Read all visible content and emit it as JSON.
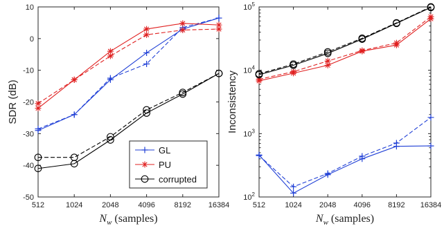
{
  "chart_data": [
    {
      "type": "line",
      "title": "",
      "xlabel_symbol": "N",
      "xlabel_sub": "w",
      "xlabel_rest": " (samples)",
      "ylabel": "SDR (dB)",
      "xscale": "log2",
      "xlim": [
        512,
        16384
      ],
      "ylim": [
        -50,
        10
      ],
      "x_ticks": [
        512,
        1024,
        2048,
        4096,
        8192,
        16384
      ],
      "y_ticks": [
        -50,
        -40,
        -30,
        -20,
        -10,
        0,
        10
      ],
      "grid": false,
      "legend": {
        "placement": "bottom-right",
        "entries": [
          {
            "label": "GL",
            "color": "#1f3fd6",
            "marker": "plus"
          },
          {
            "label": "PU",
            "color": "#e02020",
            "marker": "star"
          },
          {
            "label": "corrupted",
            "color": "#000000",
            "marker": "circle"
          }
        ]
      },
      "x": [
        512,
        1024,
        2048,
        4096,
        8192,
        16384
      ],
      "series": [
        {
          "name": "GL",
          "style": "solid",
          "color": "#1f3fd6",
          "marker": "plus",
          "values": [
            -29,
            -24,
            -13,
            -4.5,
            3,
            6.5
          ]
        },
        {
          "name": "GL",
          "style": "dashed",
          "color": "#1f3fd6",
          "marker": "plus",
          "values": [
            -28.5,
            -24,
            -12.5,
            -8,
            3.5,
            6.5
          ]
        },
        {
          "name": "PU",
          "style": "solid",
          "color": "#e02020",
          "marker": "star",
          "values": [
            -22,
            -13,
            -4,
            3,
            4.8,
            4.3
          ]
        },
        {
          "name": "PU",
          "style": "dashed",
          "color": "#e02020",
          "marker": "star",
          "values": [
            -20.5,
            -13,
            -5.5,
            1.2,
            2.7,
            3
          ]
        },
        {
          "name": "corrupted",
          "style": "solid",
          "color": "#000000",
          "marker": "circle",
          "values": [
            -41,
            -39.5,
            -32,
            -23.5,
            -17.5,
            -11
          ]
        },
        {
          "name": "corrupted",
          "style": "dashed",
          "color": "#000000",
          "marker": "circle",
          "values": [
            -37.5,
            -37.5,
            -31,
            -22.5,
            -17,
            -11
          ]
        }
      ]
    },
    {
      "type": "line",
      "title": "",
      "xlabel_symbol": "N",
      "xlabel_sub": "w",
      "xlabel_rest": " (samples)",
      "ylabel": "Inconsistency",
      "xscale": "log2",
      "yscale": "log",
      "xlim": [
        512,
        16384
      ],
      "ylim": [
        100,
        100000
      ],
      "x_ticks": [
        512,
        1024,
        2048,
        4096,
        8192,
        16384
      ],
      "y_ticks": [
        100,
        1000,
        10000,
        100000
      ],
      "y_tick_labels": [
        {
          "base": "10",
          "exp": "2"
        },
        {
          "base": "10",
          "exp": "3"
        },
        {
          "base": "10",
          "exp": "4"
        },
        {
          "base": "10",
          "exp": "5"
        }
      ],
      "grid": false,
      "x": [
        512,
        1024,
        2048,
        4096,
        8192,
        16384
      ],
      "series": [
        {
          "name": "GL",
          "style": "solid",
          "color": "#1f3fd6",
          "marker": "plus",
          "values": [
            460,
            115,
            225,
            400,
            630,
            640
          ]
        },
        {
          "name": "GL",
          "style": "dashed",
          "color": "#1f3fd6",
          "marker": "plus",
          "values": [
            450,
            145,
            235,
            440,
            710,
            1800
          ]
        },
        {
          "name": "PU",
          "style": "solid",
          "color": "#e02020",
          "marker": "star",
          "values": [
            6800,
            9000,
            12000,
            20000,
            25000,
            65000
          ]
        },
        {
          "name": "PU",
          "style": "dashed",
          "color": "#e02020",
          "marker": "star",
          "values": [
            7200,
            9500,
            14000,
            20500,
            27000,
            70000
          ]
        },
        {
          "name": "corrupted",
          "style": "solid",
          "color": "#000000",
          "marker": "circle",
          "values": [
            8500,
            12000,
            18500,
            31000,
            55000,
            98000
          ]
        },
        {
          "name": "corrupted",
          "style": "dashed",
          "color": "#000000",
          "marker": "circle",
          "values": [
            8800,
            12500,
            19500,
            32000,
            56000,
            100000
          ]
        }
      ]
    }
  ]
}
